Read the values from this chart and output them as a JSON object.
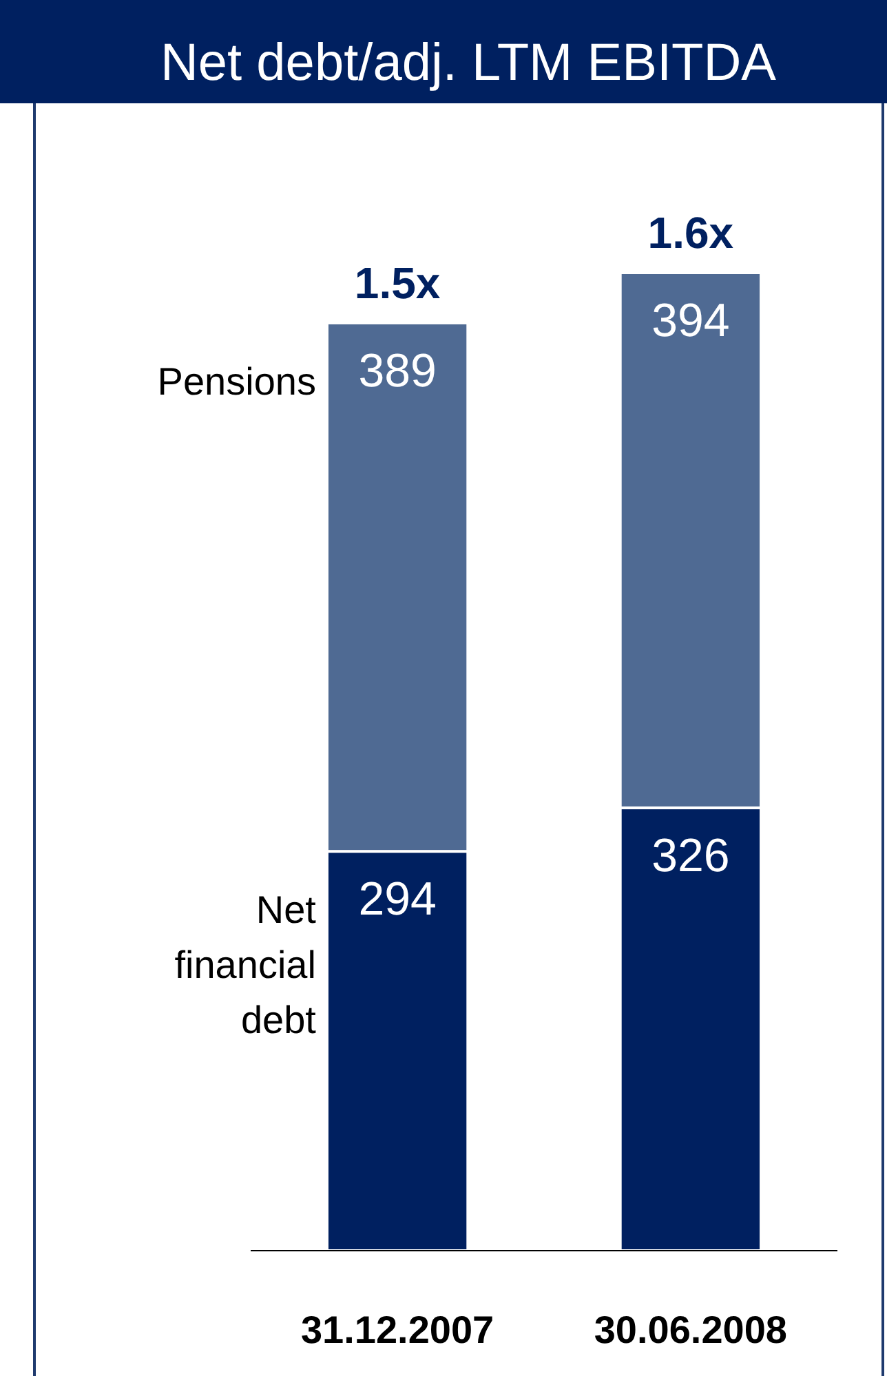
{
  "chart_data": {
    "type": "bar",
    "title": "Net debt/adj. LTM EBITDA",
    "categories": [
      "31.12.2007",
      "30.06.2008"
    ],
    "stacked": true,
    "data_labels": true,
    "annotations": [
      {
        "text": "1.5x",
        "x": "31.12.2007",
        "y": 683
      },
      {
        "text": "1.6x",
        "x": "30.06.2008",
        "y": 720
      }
    ],
    "series": [
      {
        "name": "Net financial debt",
        "color": "#002060",
        "values": [
          294,
          326
        ]
      },
      {
        "name": "Pensions",
        "color": "#4f6a93",
        "values": [
          389,
          394
        ]
      }
    ]
  }
}
